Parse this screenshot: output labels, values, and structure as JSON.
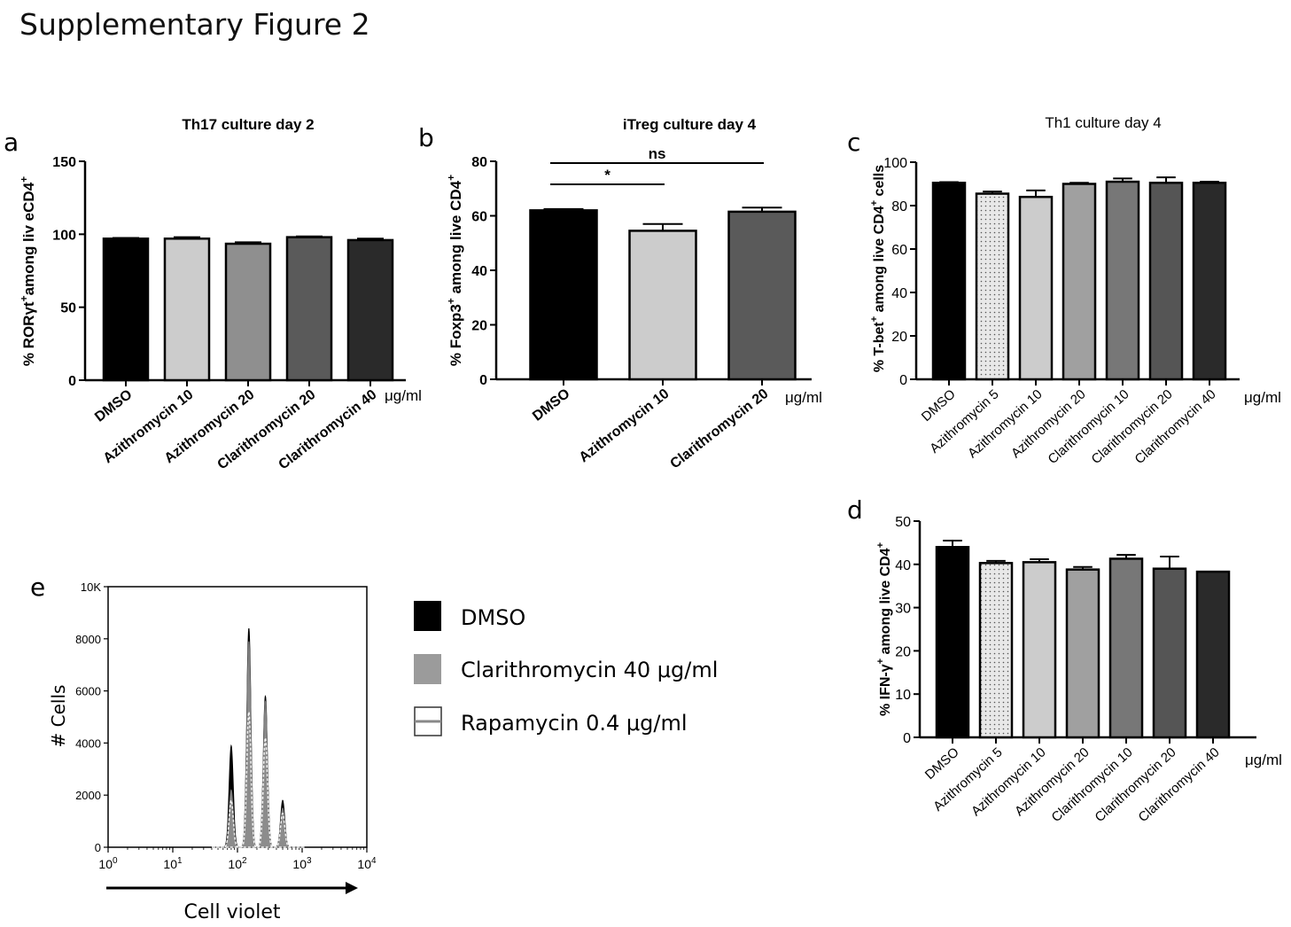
{
  "page_title": "Supplementary Figure 2",
  "colors": {
    "black": "#000000",
    "light_gray": "#cccccc",
    "mid_gray": "#8f8f8f",
    "dark_gray": "#5a5a5a",
    "darker_gray": "#2a2a2a",
    "gray_7": "#777777",
    "gray_4": "#a0a0a0",
    "gray_d": "#555555",
    "dotted_fill": "#e8e8e8"
  },
  "chart_data": [
    {
      "panel_label": "a",
      "type": "bar",
      "title": "Th17 culture day 2",
      "ylabel_prefix": "% ROR",
      "ylabel_gamma": "γ",
      "ylabel_mid": "t",
      "ylabel_plus1": "+",
      "ylabel_rest": "among liv eCD4",
      "ylabel_plus2": "+",
      "unit_label": "μg/ml",
      "categories": [
        "DMSO",
        "Azithromycin 10",
        "Azithromycin 20",
        "Clarithromycin 20",
        "Clarithromycin 40"
      ],
      "values": [
        97,
        97,
        93.5,
        98,
        96
      ],
      "errors": [
        0.5,
        1,
        1,
        0.5,
        1
      ],
      "ylim": [
        0,
        150
      ],
      "yticks": [
        0,
        50,
        100,
        150
      ],
      "ytick_labels": [
        "0",
        "50",
        "100",
        "150"
      ]
    },
    {
      "panel_label": "b",
      "type": "bar",
      "title": "iTreg culture day 4",
      "ylabel_prefix": "% Foxp3",
      "ylabel_plus1": "+",
      "ylabel_rest": " among live CD4",
      "ylabel_plus2": "+",
      "unit_label": "μg/ml",
      "categories": [
        "DMSO",
        "Azithromycin 10",
        "Clarithromycin 20"
      ],
      "values": [
        62,
        54.5,
        61.5
      ],
      "errors": [
        0.5,
        2.5,
        1.5
      ],
      "ylim": [
        0,
        80
      ],
      "yticks": [
        0,
        20,
        40,
        60,
        80
      ],
      "ytick_labels": [
        "0",
        "20",
        "40",
        "60",
        "80"
      ],
      "annotations": [
        {
          "text": "ns",
          "from": 0,
          "to": 2
        },
        {
          "text": "*",
          "from": 0,
          "to": 1
        }
      ]
    },
    {
      "panel_label": "c",
      "type": "bar",
      "title": "Th1 culture day 4",
      "ylabel_prefix": "% T-bet",
      "ylabel_plus1": "+",
      "ylabel_rest": " among live CD4",
      "ylabel_plus2": "+",
      "ylabel_suffix": " cells",
      "unit_label": "μg/ml",
      "categories": [
        "DMSO",
        "Azithromycin 5",
        "Azithromycin 10",
        "Azithromycin 20",
        "Clarithromycin 10",
        "Clarithromycin 20",
        "Clarithromycin 40"
      ],
      "values": [
        90.5,
        85.5,
        84,
        90,
        91,
        90.5,
        90.5
      ],
      "errors": [
        0.3,
        1,
        3,
        0.5,
        1.5,
        2.5,
        0.5
      ],
      "ylim": [
        0,
        100
      ],
      "yticks": [
        0,
        20,
        40,
        60,
        80,
        100
      ],
      "ytick_labels": [
        "0",
        "20",
        "40",
        "60",
        "80",
        "100"
      ]
    },
    {
      "panel_label": "d",
      "type": "bar",
      "ylabel_prefix": "% IFN-",
      "ylabel_gamma": "γ",
      "ylabel_plus1": "+",
      "ylabel_rest": " among live CD4",
      "ylabel_plus2": "+",
      "unit_label": "μg/ml",
      "categories": [
        "DMSO",
        "Azithromycin 5",
        "Azithromycin 10",
        "Azithromycin 20",
        "Clarithromycin 10",
        "Clarithromycin 20",
        "Clarithromycin 40"
      ],
      "values": [
        44,
        40.3,
        40.5,
        38.8,
        41.3,
        39,
        38.3
      ],
      "errors": [
        1.5,
        0.5,
        0.7,
        0.6,
        0.9,
        2.8,
        0
      ],
      "ylim": [
        0,
        50
      ],
      "yticks": [
        0,
        10,
        20,
        30,
        40,
        50
      ],
      "ytick_labels": [
        "0",
        "10",
        "20",
        "30",
        "40",
        "50"
      ]
    },
    {
      "panel_label": "e",
      "type": "area",
      "xlabel": "Cell violet",
      "ylabel": "# Cells",
      "x_scale": "log",
      "xlim": [
        1,
        10000
      ],
      "ylim": [
        0,
        10000
      ],
      "ytick_labels": [
        "0",
        "2000",
        "4000",
        "6000",
        "8000",
        "10K"
      ],
      "yticks": [
        0,
        2000,
        4000,
        6000,
        8000,
        10000
      ],
      "xtick_base": "10",
      "xtick_exponents": [
        "0",
        "1",
        "2",
        "3",
        "4"
      ],
      "series": [
        {
          "name": "DMSO",
          "legend": "DMSO",
          "peaks": [
            {
              "x": 80,
              "y": 3900
            },
            {
              "x": 150,
              "y": 8400
            },
            {
              "x": 270,
              "y": 5800
            },
            {
              "x": 500,
              "y": 1800
            }
          ]
        },
        {
          "name": "Clarithromycin 40",
          "legend": "Clarithromycin 40 μg/ml",
          "peaks": [
            {
              "x": 80,
              "y": 2200
            },
            {
              "x": 150,
              "y": 7900
            },
            {
              "x": 270,
              "y": 5600
            },
            {
              "x": 500,
              "y": 1500
            }
          ]
        },
        {
          "name": "Rapamycin 0.4",
          "legend": "Rapamycin 0.4 μg/ml",
          "peaks": [
            {
              "x": 80,
              "y": 1800
            },
            {
              "x": 150,
              "y": 5200
            },
            {
              "x": 270,
              "y": 4200
            },
            {
              "x": 500,
              "y": 1300
            }
          ]
        }
      ]
    }
  ]
}
